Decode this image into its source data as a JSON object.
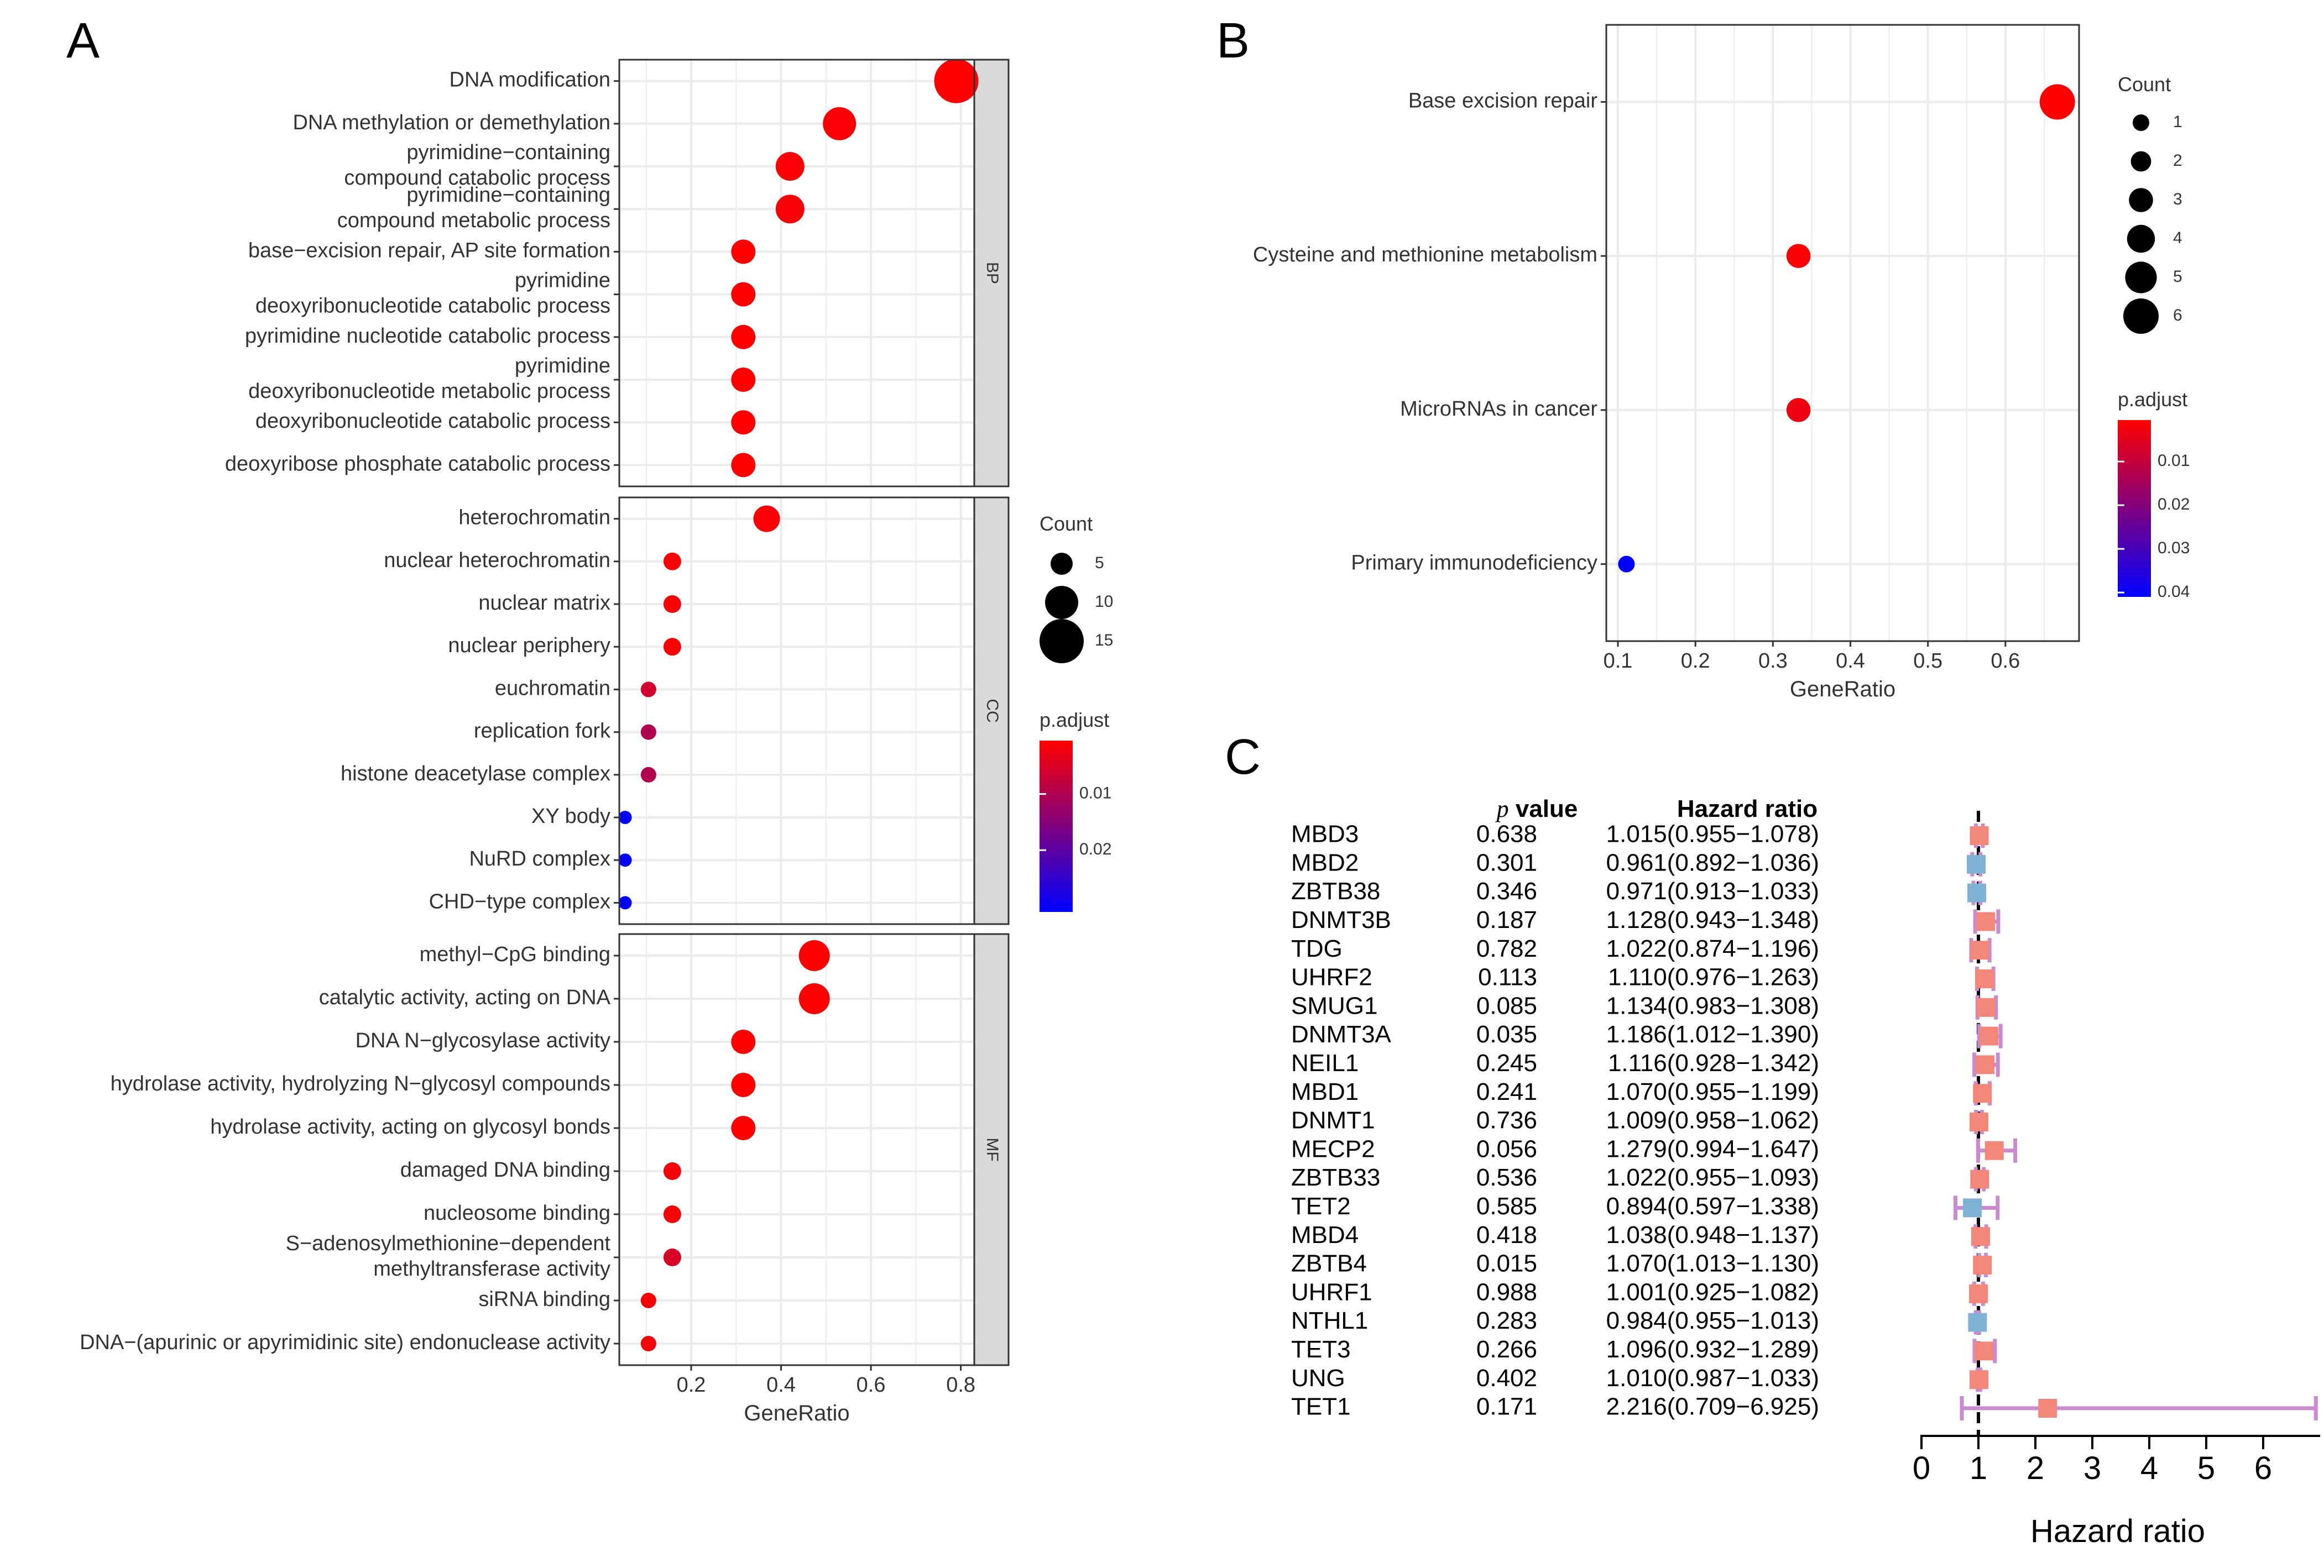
{
  "panel_labels": {
    "a": "A",
    "b": "B",
    "c": "C"
  },
  "colors": {
    "low_p": "#ff0000",
    "high_p": "#0000ff",
    "hr_up": "#f2877a",
    "hr_down": "#7fb2d5",
    "whisker_up": "#c98ad0",
    "whisker_down": "#c98ad0",
    "strip": "#d9d9d9",
    "grid": "#ebebeb"
  },
  "chart_data": [
    {
      "id": "A",
      "type": "scatter",
      "subtype": "faceted-dotplot",
      "xlabel": "GeneRatio",
      "ylabel": "",
      "xlim": [
        0.04,
        0.83
      ],
      "xticks": [
        0.2,
        0.4,
        0.6,
        0.8
      ],
      "xtick_labels": [
        "0.2",
        "0.4",
        "0.6",
        "0.8"
      ],
      "grid": true,
      "facets": [
        {
          "strip": "BP",
          "terms": [
            {
              "label": [
                "DNA modification"
              ],
              "ratio": 0.79,
              "count": 15,
              "padj": 0.0005
            },
            {
              "label": [
                "DNA methylation or demethylation"
              ],
              "ratio": 0.53,
              "count": 10,
              "padj": 0.001
            },
            {
              "label": [
                "pyrimidine−containing",
                "compound catabolic process"
              ],
              "ratio": 0.42,
              "count": 8,
              "padj": 0.0008
            },
            {
              "label": [
                "pyrimidine−containing",
                "compound metabolic process"
              ],
              "ratio": 0.42,
              "count": 8,
              "padj": 0.0012
            },
            {
              "label": [
                "base−excision repair, AP site formation"
              ],
              "ratio": 0.316,
              "count": 6,
              "padj": 0.0005
            },
            {
              "label": [
                "pyrimidine",
                "deoxyribonucleotide catabolic process"
              ],
              "ratio": 0.316,
              "count": 6,
              "padj": 0.0005
            },
            {
              "label": [
                "pyrimidine nucleotide catabolic process"
              ],
              "ratio": 0.316,
              "count": 6,
              "padj": 0.0005
            },
            {
              "label": [
                "pyrimidine",
                "deoxyribonucleotide metabolic process"
              ],
              "ratio": 0.316,
              "count": 6,
              "padj": 0.0005
            },
            {
              "label": [
                "deoxyribonucleotide catabolic process"
              ],
              "ratio": 0.316,
              "count": 6,
              "padj": 0.0005
            },
            {
              "label": [
                "deoxyribose phosphate catabolic process"
              ],
              "ratio": 0.316,
              "count": 6,
              "padj": 0.0005
            }
          ]
        },
        {
          "strip": "CC",
          "terms": [
            {
              "label": [
                "heterochromatin"
              ],
              "ratio": 0.368,
              "count": 7,
              "padj": 0.0008
            },
            {
              "label": [
                "nuclear heterochromatin"
              ],
              "ratio": 0.158,
              "count": 3,
              "padj": 0.001
            },
            {
              "label": [
                "nuclear matrix"
              ],
              "ratio": 0.158,
              "count": 3,
              "padj": 0.001
            },
            {
              "label": [
                "nuclear periphery"
              ],
              "ratio": 0.158,
              "count": 3,
              "padj": 0.001
            },
            {
              "label": [
                "euchromatin"
              ],
              "ratio": 0.105,
              "count": 2,
              "padj": 0.006
            },
            {
              "label": [
                "replication fork"
              ],
              "ratio": 0.105,
              "count": 2,
              "padj": 0.01
            },
            {
              "label": [
                "histone deacetylase complex"
              ],
              "ratio": 0.105,
              "count": 2,
              "padj": 0.01
            },
            {
              "label": [
                "XY body"
              ],
              "ratio": 0.053,
              "count": 1,
              "padj": 0.031
            },
            {
              "label": [
                "NuRD complex"
              ],
              "ratio": 0.053,
              "count": 1,
              "padj": 0.031
            },
            {
              "label": [
                "CHD−type complex"
              ],
              "ratio": 0.053,
              "count": 1,
              "padj": 0.031
            }
          ]
        },
        {
          "strip": "MF",
          "terms": [
            {
              "label": [
                "methyl−CpG binding"
              ],
              "ratio": 0.474,
              "count": 9,
              "padj": 0.0005
            },
            {
              "label": [
                "catalytic activity, acting on DNA"
              ],
              "ratio": 0.474,
              "count": 9,
              "padj": 0.0005
            },
            {
              "label": [
                "DNA N−glycosylase activity"
              ],
              "ratio": 0.316,
              "count": 6,
              "padj": 0.0005
            },
            {
              "label": [
                "hydrolase activity, hydrolyzing N−glycosyl compounds"
              ],
              "ratio": 0.316,
              "count": 6,
              "padj": 0.0005
            },
            {
              "label": [
                "hydrolase activity, acting on glycosyl bonds"
              ],
              "ratio": 0.316,
              "count": 6,
              "padj": 0.0005
            },
            {
              "label": [
                "damaged DNA binding"
              ],
              "ratio": 0.158,
              "count": 3,
              "padj": 0.0015
            },
            {
              "label": [
                "nucleosome binding"
              ],
              "ratio": 0.158,
              "count": 3,
              "padj": 0.0015
            },
            {
              "label": [
                "S−adenosylmethionine−dependent",
                "methyltransferase activity"
              ],
              "ratio": 0.158,
              "count": 3,
              "padj": 0.005
            },
            {
              "label": [
                "siRNA binding"
              ],
              "ratio": 0.105,
              "count": 2,
              "padj": 0.0015
            },
            {
              "label": [
                "DNA−(apurinic or apyrimidinic site) endonuclease activity"
              ],
              "ratio": 0.105,
              "count": 2,
              "padj": 0.0015
            }
          ]
        }
      ],
      "legend": {
        "placement": "right",
        "size_title": "Count",
        "size_values": [
          5,
          10,
          15
        ],
        "size_labels": [
          "5",
          "10",
          "15"
        ],
        "color_title": "p.adjust",
        "color_domain": [
          0.0005,
          0.031
        ],
        "color_ticks": [
          0.01,
          0.02
        ],
        "color_tick_labels": [
          "0.01",
          "0.02"
        ]
      }
    },
    {
      "id": "B",
      "type": "scatter",
      "subtype": "dotplot",
      "xlabel": "GeneRatio",
      "ylabel": "",
      "xlim": [
        0.085,
        0.695
      ],
      "xticks": [
        0.1,
        0.2,
        0.3,
        0.4,
        0.5,
        0.6
      ],
      "xtick_labels": [
        "0.1",
        "0.2",
        "0.3",
        "0.4",
        "0.5",
        "0.6"
      ],
      "grid": true,
      "terms": [
        {
          "label": "Base excision repair",
          "ratio": 0.667,
          "count": 6,
          "padj": 0.0005
        },
        {
          "label": "Cysteine and methionine metabolism",
          "ratio": 0.333,
          "count": 3,
          "padj": 0.001
        },
        {
          "label": "MicroRNAs in cancer",
          "ratio": 0.333,
          "count": 3,
          "padj": 0.003
        },
        {
          "label": "Primary immunodeficiency",
          "ratio": 0.111,
          "count": 1,
          "padj": 0.041
        }
      ],
      "legend": {
        "placement": "right",
        "size_title": "Count",
        "size_values": [
          1,
          2,
          3,
          4,
          5,
          6
        ],
        "size_labels": [
          "1",
          "2",
          "3",
          "4",
          "5",
          "6"
        ],
        "color_title": "p.adjust",
        "color_domain": [
          0.0005,
          0.041
        ],
        "color_ticks": [
          0.01,
          0.02,
          0.03,
          0.04
        ],
        "color_tick_labels": [
          "0.01",
          "0.02",
          "0.03",
          "0.04"
        ]
      }
    },
    {
      "id": "C",
      "type": "forest",
      "xlabel": "Hazard ratio",
      "xlim": [
        0,
        7
      ],
      "xticks": [
        0,
        1,
        2,
        3,
        4,
        5,
        6
      ],
      "xtick_labels": [
        "0",
        "1",
        "2",
        "3",
        "4",
        "5",
        "6"
      ],
      "reference_line": 1,
      "col_p": "value",
      "col_p_italic": "p",
      "col_hr": "Hazard ratio",
      "rows": [
        {
          "gene": "MBD3",
          "p": "0.638",
          "hr_text": "1.015(0.955−1.078)",
          "hr": 1.015,
          "lo": 0.955,
          "hi": 1.078
        },
        {
          "gene": "MBD2",
          "p": "0.301",
          "hr_text": "0.961(0.892−1.036)",
          "hr": 0.961,
          "lo": 0.892,
          "hi": 1.036
        },
        {
          "gene": "ZBTB38",
          "p": "0.346",
          "hr_text": "0.971(0.913−1.033)",
          "hr": 0.971,
          "lo": 0.913,
          "hi": 1.033
        },
        {
          "gene": "DNMT3B",
          "p": "0.187",
          "hr_text": "1.128(0.943−1.348)",
          "hr": 1.128,
          "lo": 0.943,
          "hi": 1.348
        },
        {
          "gene": "TDG",
          "p": "0.782",
          "hr_text": "1.022(0.874−1.196)",
          "hr": 1.022,
          "lo": 0.874,
          "hi": 1.196
        },
        {
          "gene": "UHRF2",
          "p": "0.113",
          "hr_text": "1.110(0.976−1.263)",
          "hr": 1.11,
          "lo": 0.976,
          "hi": 1.263
        },
        {
          "gene": "SMUG1",
          "p": "0.085",
          "hr_text": "1.134(0.983−1.308)",
          "hr": 1.134,
          "lo": 0.983,
          "hi": 1.308
        },
        {
          "gene": "DNMT3A",
          "p": "0.035",
          "hr_text": "1.186(1.012−1.390)",
          "hr": 1.186,
          "lo": 1.012,
          "hi": 1.39
        },
        {
          "gene": "NEIL1",
          "p": "0.245",
          "hr_text": "1.116(0.928−1.342)",
          "hr": 1.116,
          "lo": 0.928,
          "hi": 1.342
        },
        {
          "gene": "MBD1",
          "p": "0.241",
          "hr_text": "1.070(0.955−1.199)",
          "hr": 1.07,
          "lo": 0.955,
          "hi": 1.199
        },
        {
          "gene": "DNMT1",
          "p": "0.736",
          "hr_text": "1.009(0.958−1.062)",
          "hr": 1.009,
          "lo": 0.958,
          "hi": 1.062
        },
        {
          "gene": "MECP2",
          "p": "0.056",
          "hr_text": "1.279(0.994−1.647)",
          "hr": 1.279,
          "lo": 0.994,
          "hi": 1.647
        },
        {
          "gene": "ZBTB33",
          "p": "0.536",
          "hr_text": "1.022(0.955−1.093)",
          "hr": 1.022,
          "lo": 0.955,
          "hi": 1.093
        },
        {
          "gene": "TET2",
          "p": "0.585",
          "hr_text": "0.894(0.597−1.338)",
          "hr": 0.894,
          "lo": 0.597,
          "hi": 1.338
        },
        {
          "gene": "MBD4",
          "p": "0.418",
          "hr_text": "1.038(0.948−1.137)",
          "hr": 1.038,
          "lo": 0.948,
          "hi": 1.137
        },
        {
          "gene": "ZBTB4",
          "p": "0.015",
          "hr_text": "1.070(1.013−1.130)",
          "hr": 1.07,
          "lo": 1.013,
          "hi": 1.13
        },
        {
          "gene": "UHRF1",
          "p": "0.988",
          "hr_text": "1.001(0.925−1.082)",
          "hr": 1.001,
          "lo": 0.925,
          "hi": 1.082
        },
        {
          "gene": "NTHL1",
          "p": "0.283",
          "hr_text": "0.984(0.955−1.013)",
          "hr": 0.984,
          "lo": 0.955,
          "hi": 1.013
        },
        {
          "gene": "TET3",
          "p": "0.266",
          "hr_text": "1.096(0.932−1.289)",
          "hr": 1.096,
          "lo": 0.932,
          "hi": 1.289
        },
        {
          "gene": "UNG",
          "p": "0.402",
          "hr_text": "1.010(0.987−1.033)",
          "hr": 1.01,
          "lo": 0.987,
          "hi": 1.033
        },
        {
          "gene": "TET1",
          "p": "0.171",
          "hr_text": "2.216(0.709−6.925)",
          "hr": 2.216,
          "lo": 0.709,
          "hi": 6.925
        }
      ]
    }
  ]
}
